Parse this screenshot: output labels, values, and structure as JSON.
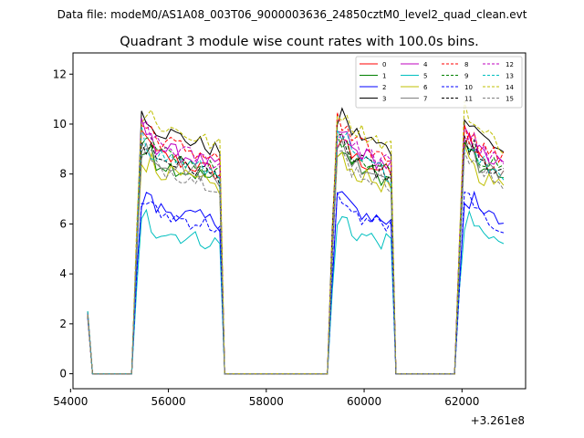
{
  "chart_data": {
    "type": "line",
    "suptitle": "Data file: modeM0/AS1A08_003T06_9000003636_24850cztM0_level2_quad_clean.evt",
    "title": "Quadrant 3 module wise count rates with 100.0s bins.",
    "xlabel": "",
    "ylabel": "",
    "x_offset_label": "+3.261e8",
    "xlim": [
      54050,
      63300
    ],
    "ylim": [
      -0.6,
      12.85
    ],
    "x_ticks": [
      54000,
      56000,
      58000,
      60000,
      62000
    ],
    "x_tick_labels": [
      "54000",
      "56000",
      "58000",
      "60000",
      "62000"
    ],
    "y_ticks": [
      0,
      2,
      4,
      6,
      8,
      10,
      12
    ],
    "y_tick_labels": [
      "0",
      "2",
      "4",
      "6",
      "8",
      "10",
      "12"
    ],
    "legend_position": "top-right",
    "series": [
      {
        "name": "0",
        "color": "#ff0000",
        "dash": "solid",
        "level": 8.6
      },
      {
        "name": "1",
        "color": "#008000",
        "dash": "solid",
        "level": 8.3
      },
      {
        "name": "2",
        "color": "#0000ff",
        "dash": "solid",
        "level": 6.5
      },
      {
        "name": "3",
        "color": "#000000",
        "dash": "solid",
        "level": 9.6
      },
      {
        "name": "4",
        "color": "#bf00bf",
        "dash": "solid",
        "level": 8.9
      },
      {
        "name": "5",
        "color": "#00bfbf",
        "dash": "solid",
        "level": 5.6
      },
      {
        "name": "6",
        "color": "#bfbf00",
        "dash": "solid",
        "level": 8.0
      },
      {
        "name": "7",
        "color": "#808080",
        "dash": "solid",
        "level": 8.4
      },
      {
        "name": "8",
        "color": "#ff0000",
        "dash": "dashed",
        "level": 9.2
      },
      {
        "name": "9",
        "color": "#008000",
        "dash": "dashed",
        "level": 8.7
      },
      {
        "name": "10",
        "color": "#0000ff",
        "dash": "dashed",
        "level": 6.3
      },
      {
        "name": "11",
        "color": "#000000",
        "dash": "dashed",
        "level": 8.5
      },
      {
        "name": "12",
        "color": "#bf00bf",
        "dash": "dashed",
        "level": 9.0
      },
      {
        "name": "13",
        "color": "#00bfbf",
        "dash": "dashed",
        "level": 8.6
      },
      {
        "name": "14",
        "color": "#bfbf00",
        "dash": "dashed",
        "level": 9.8
      },
      {
        "name": "15",
        "color": "#808080",
        "dash": "dashed",
        "level": 8.1
      }
    ],
    "time_grid": {
      "start": 54350,
      "step": 100,
      "count": 86
    },
    "on_intervals": [
      [
        55350,
        57050
      ],
      [
        59350,
        60550
      ],
      [
        61950,
        62850
      ]
    ],
    "start_value": 2.4
  }
}
